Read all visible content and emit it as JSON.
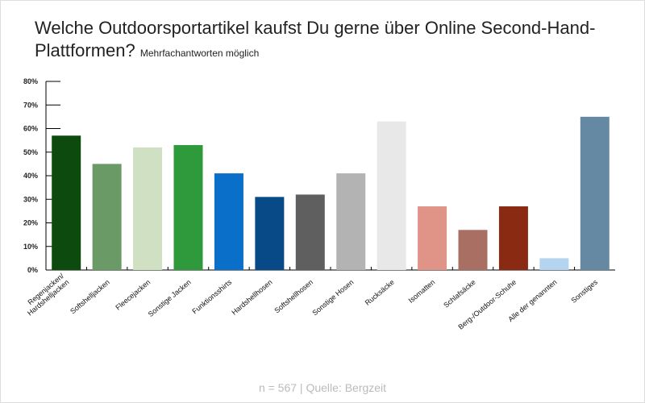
{
  "chart_data": {
    "type": "bar",
    "title": "Welche Outdoorsportartikel kaufst Du gerne über Online Second-Hand-Plattformen?",
    "subtitle": "Mehrfachantworten möglich",
    "categories": [
      "Regenjacken/\nHardshelljacken",
      "Softshelljacken",
      "Fleecejacken",
      "Sonstige Jacken",
      "Funktionsshirts",
      "Hardshellhosen",
      "Softshellhosen",
      "Sonstige Hosen",
      "Rucksäcke",
      "Isomatten",
      "Schlafsäcke",
      "Berg-/Outdoor-Schuhe",
      "Alle der genannten",
      "Sonstiges"
    ],
    "values": [
      57,
      45,
      52,
      53,
      41,
      31,
      32,
      41,
      63,
      27,
      17,
      27,
      5,
      65
    ],
    "colors": [
      "#0d4a0d",
      "#6a9a66",
      "#cfe0c3",
      "#2e9a3c",
      "#0a6fc8",
      "#084a87",
      "#5f5f5f",
      "#b3b3b3",
      "#e8e8e8",
      "#e09488",
      "#a86f62",
      "#8a2a12",
      "#b5d4f0",
      "#6689a3"
    ],
    "ylim": [
      0,
      80
    ],
    "yticks": [
      "0%",
      "10%",
      "20%",
      "30%",
      "40%",
      "50%",
      "60%",
      "70%",
      "80%"
    ],
    "grid": false,
    "xlabel": "",
    "ylabel": ""
  },
  "footer": "n = 567 | Quelle: Bergzeit"
}
